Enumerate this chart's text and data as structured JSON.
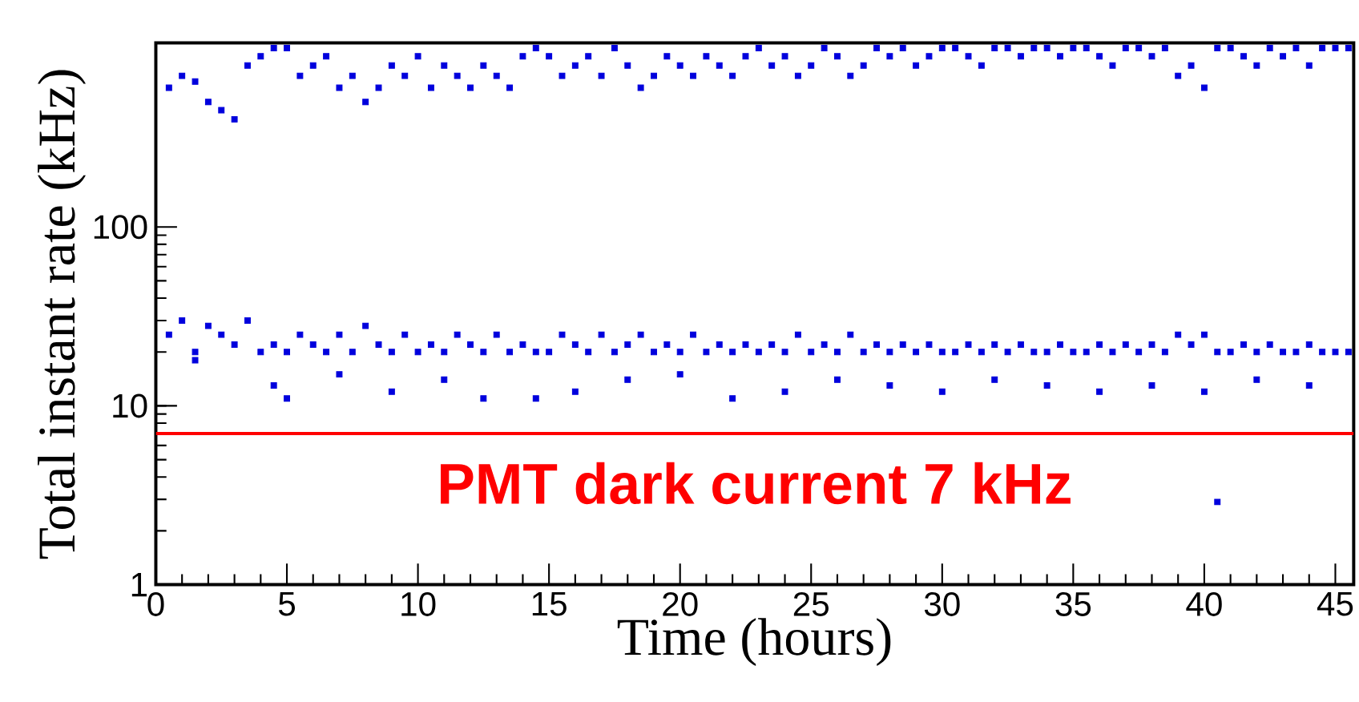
{
  "chart_data": {
    "type": "scatter",
    "xlabel": "Time (hours)",
    "ylabel": "Total instant rate (kHz)",
    "log": "y",
    "marker": "square",
    "xlim": [
      0,
      45.7
    ],
    "ylim": [
      1,
      1070
    ],
    "xticks": [
      0,
      5,
      10,
      15,
      20,
      25,
      30,
      35,
      40,
      45
    ],
    "yticks": [
      1,
      10,
      100
    ],
    "series": [
      {
        "color": "#0000dd",
        "x": [
          0.5,
          0.5,
          1,
          1,
          1.5,
          1.5,
          2,
          2,
          2.5,
          2.5,
          3,
          3,
          3.5,
          3.5,
          4,
          4,
          4.5,
          4.5,
          5,
          5,
          5.5,
          5.5,
          6,
          6,
          6.5,
          6.5,
          7,
          7,
          7.5,
          7.5,
          8,
          8,
          8.5,
          8.5,
          9,
          9,
          9.5,
          9.5,
          10,
          10,
          10.5,
          10.5,
          11,
          11,
          11.5,
          11.5,
          12,
          12,
          12.5,
          12.5,
          13,
          13,
          13.5,
          13.5,
          14,
          14,
          14.5,
          14.5,
          15,
          15,
          15.5,
          15.5,
          16,
          16,
          16.5,
          16.5,
          17,
          17,
          17.5,
          17.5,
          18,
          18,
          18.5,
          18.5,
          19,
          19,
          19.5,
          19.5,
          20,
          20,
          20.5,
          20.5,
          21,
          21,
          21.5,
          21.5,
          22,
          22,
          22.5,
          22.5,
          23,
          23,
          23.5,
          23.5,
          24,
          24,
          24.5,
          24.5,
          25,
          25,
          25.5,
          25.5,
          26,
          26,
          26.5,
          26.5,
          27,
          27,
          27.5,
          27.5,
          28,
          28,
          28.5,
          28.5,
          29,
          29,
          29.5,
          29.5,
          30,
          30,
          30.5,
          30.5,
          31,
          31,
          31.5,
          31.5,
          32,
          32,
          32.5,
          32.5,
          33,
          33,
          33.5,
          33.5,
          34,
          34,
          34.5,
          34.5,
          35,
          35,
          35.5,
          35.5,
          36,
          36,
          36.5,
          36.5,
          37,
          37,
          37.5,
          37.5,
          38,
          38,
          38.5,
          38.5,
          39,
          39,
          39.5,
          39.5,
          40,
          40,
          40.5,
          40.5,
          41,
          41,
          41.5,
          41.5,
          42,
          42,
          42.5,
          42.5,
          43,
          43,
          43.5,
          43.5,
          44,
          44,
          44.5,
          44.5,
          45,
          45,
          45.5,
          45.5,
          1.5,
          4.5,
          5,
          7,
          9,
          11,
          12.5,
          14.5,
          16,
          18,
          20,
          22,
          24,
          26,
          28,
          30,
          32,
          34,
          36,
          38,
          40,
          42,
          44,
          40.5
        ],
        "values": [
          25,
          600,
          30,
          700,
          20,
          650,
          28,
          500,
          25,
          450,
          22,
          400,
          30,
          800,
          20,
          900,
          22,
          1000,
          20,
          1000,
          25,
          700,
          22,
          800,
          20,
          900,
          25,
          600,
          20,
          700,
          28,
          500,
          22,
          600,
          20,
          800,
          25,
          700,
          20,
          900,
          22,
          600,
          20,
          800,
          25,
          700,
          22,
          600,
          20,
          800,
          25,
          700,
          20,
          600,
          22,
          900,
          20,
          1000,
          20,
          900,
          25,
          700,
          22,
          800,
          20,
          900,
          25,
          700,
          20,
          1000,
          22,
          800,
          25,
          600,
          20,
          700,
          22,
          900,
          20,
          800,
          25,
          700,
          20,
          900,
          22,
          800,
          20,
          700,
          22,
          900,
          20,
          1000,
          22,
          800,
          20,
          900,
          25,
          700,
          20,
          800,
          22,
          1000,
          20,
          900,
          25,
          700,
          20,
          800,
          22,
          1000,
          20,
          900,
          22,
          1000,
          20,
          800,
          22,
          900,
          20,
          1000,
          20,
          1000,
          22,
          900,
          20,
          800,
          22,
          1000,
          20,
          1000,
          22,
          900,
          20,
          1000,
          20,
          1000,
          22,
          900,
          20,
          1000,
          20,
          1000,
          22,
          900,
          20,
          800,
          22,
          1000,
          20,
          1000,
          22,
          900,
          20,
          1000,
          25,
          700,
          22,
          800,
          25,
          600,
          20,
          1000,
          20,
          1000,
          22,
          900,
          20,
          800,
          22,
          1000,
          20,
          900,
          20,
          1000,
          22,
          800,
          20,
          1000,
          20,
          1000,
          20,
          1000,
          18,
          13,
          11,
          15,
          12,
          14,
          11,
          11,
          12,
          14,
          15,
          11,
          12,
          14,
          13,
          12,
          14,
          13,
          12,
          13,
          12,
          14,
          13,
          2.9
        ]
      }
    ],
    "ref_lines": [
      {
        "axis": "y",
        "value": 7,
        "label": "PMT dark current 7 kHz",
        "color": "#ff0000",
        "line_style": "solid"
      }
    ]
  }
}
